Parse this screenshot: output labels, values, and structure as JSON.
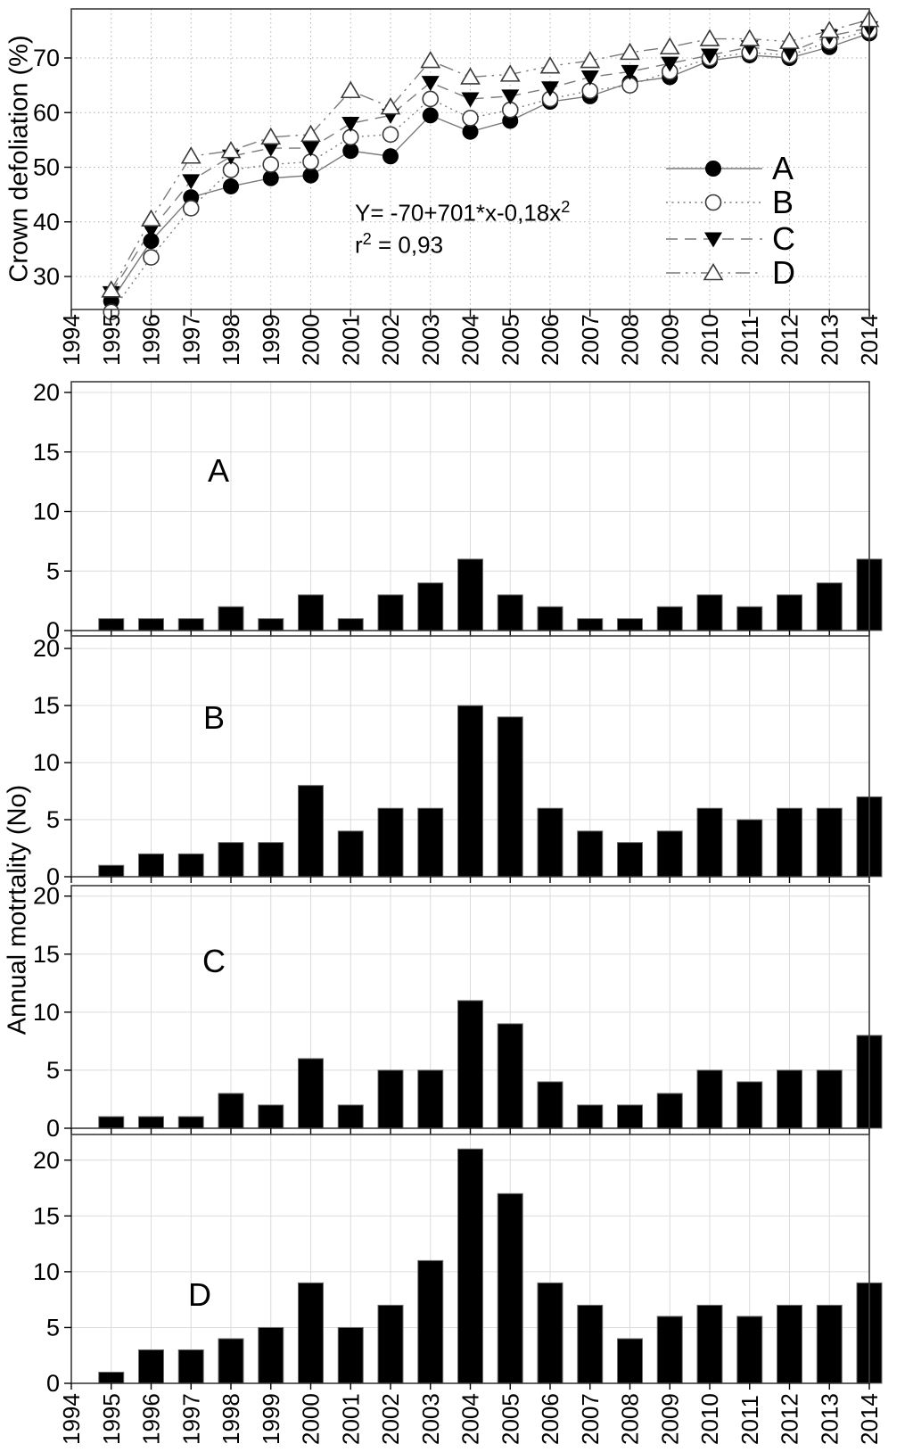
{
  "labels": {
    "ylabel_top": "Crown defoliation (%)",
    "ylabel_bottom": "Annual motrtality (No)"
  },
  "equation": {
    "line1_base": "Y= -70+701*x-0,18x",
    "line1_sup": "2",
    "line2_base": "r",
    "line2_sup": "2",
    "line2_rest": " = 0,93"
  },
  "colors": {
    "line_gray": "#7a7a7a",
    "marker_black": "#000000",
    "marker_edge": "#3a3a3a",
    "grid_dotted": "#b0b0b0",
    "grid_solid": "#dcdcdc",
    "frame": "#3c3c3c",
    "bar_fill": "#000000",
    "bar_edge": "#6e6e6e"
  },
  "chart_data": [
    {
      "id": "crown-defoliation",
      "type": "line",
      "ylabel": "Crown defoliation (%)",
      "xlim": [
        1994,
        2014
      ],
      "ylim": [
        24,
        79
      ],
      "yticks": [
        30,
        40,
        50,
        60,
        70
      ],
      "xticks": [
        1994,
        1995,
        1996,
        1997,
        1998,
        1999,
        2000,
        2001,
        2002,
        2003,
        2004,
        2005,
        2006,
        2007,
        2008,
        2009,
        2010,
        2011,
        2012,
        2013,
        2014
      ],
      "x": [
        1995,
        1996,
        1997,
        1998,
        1999,
        2000,
        2001,
        2002,
        2003,
        2004,
        2005,
        2006,
        2007,
        2008,
        2009,
        2010,
        2011,
        2012,
        2013,
        2014
      ],
      "grid": true,
      "legend_position": "right-middle",
      "annotation": "Y= -70+701*x-0,18x^2 ; r^2 = 0,93",
      "legend": [
        {
          "name": "A",
          "marker": "circle-filled",
          "line": "solid"
        },
        {
          "name": "B",
          "marker": "circle-open",
          "line": "dotted"
        },
        {
          "name": "C",
          "marker": "triangle-down-filled",
          "line": "dashed"
        },
        {
          "name": "D",
          "marker": "triangle-up-open",
          "line": "dashdotdot"
        }
      ],
      "series": [
        {
          "name": "A",
          "values": [
            25.5,
            36.5,
            44.5,
            46.5,
            48,
            48.5,
            53,
            52,
            59.5,
            56.5,
            58.5,
            62,
            63,
            65.5,
            66.5,
            69.5,
            70.5,
            70,
            72,
            74.5
          ]
        },
        {
          "name": "B",
          "values": [
            23.5,
            33.5,
            42.5,
            49.5,
            50.5,
            51,
            55.5,
            56,
            62.5,
            59,
            60.5,
            62.5,
            64,
            65,
            67.5,
            70,
            71,
            70.5,
            73,
            75
          ]
        },
        {
          "name": "C",
          "values": [
            27,
            38.5,
            47.5,
            52,
            53.5,
            53.5,
            58,
            59.5,
            65.5,
            62.5,
            63,
            64.5,
            66.5,
            67.5,
            69,
            70.5,
            72,
            71,
            74,
            75.5
          ]
        },
        {
          "name": "D",
          "values": [
            27.5,
            40.5,
            52,
            53,
            55.5,
            56,
            64,
            61,
            69.5,
            66.5,
            67,
            68.5,
            69.5,
            71,
            72,
            73.5,
            73.5,
            73,
            75,
            77
          ]
        }
      ]
    },
    {
      "id": "mortality-A",
      "type": "bar",
      "label": "A",
      "ylim": [
        0,
        20.9
      ],
      "yticks": [
        0,
        5,
        10,
        15,
        20
      ],
      "categories": [
        1995,
        1996,
        1997,
        1998,
        1999,
        2000,
        2001,
        2002,
        2003,
        2004,
        2005,
        2006,
        2007,
        2008,
        2009,
        2010,
        2011,
        2012,
        2013,
        2014
      ],
      "values": [
        1,
        1,
        1,
        2,
        1,
        3,
        1,
        3,
        4,
        6,
        3,
        2,
        1,
        1,
        2,
        3,
        2,
        3,
        4,
        6
      ]
    },
    {
      "id": "mortality-B",
      "type": "bar",
      "label": "B",
      "ylim": [
        0,
        21.1
      ],
      "yticks": [
        0,
        5,
        10,
        15,
        20
      ],
      "categories": [
        1995,
        1996,
        1997,
        1998,
        1999,
        2000,
        2001,
        2002,
        2003,
        2004,
        2005,
        2006,
        2007,
        2008,
        2009,
        2010,
        2011,
        2012,
        2013,
        2014
      ],
      "values": [
        1,
        2,
        2,
        3,
        3,
        8,
        4,
        6,
        6,
        15,
        14,
        6,
        4,
        3,
        4,
        6,
        5,
        6,
        6,
        7
      ]
    },
    {
      "id": "mortality-C",
      "type": "bar",
      "label": "C",
      "ylim": [
        0,
        20.9
      ],
      "yticks": [
        0,
        5,
        10,
        15,
        20
      ],
      "categories": [
        1995,
        1996,
        1997,
        1998,
        1999,
        2000,
        2001,
        2002,
        2003,
        2004,
        2005,
        2006,
        2007,
        2008,
        2009,
        2010,
        2011,
        2012,
        2013,
        2014
      ],
      "values": [
        1,
        1,
        1,
        3,
        2,
        6,
        2,
        5,
        5,
        11,
        9,
        4,
        2,
        2,
        3,
        5,
        4,
        5,
        5,
        8
      ]
    },
    {
      "id": "mortality-D",
      "type": "bar",
      "label": "D",
      "ylim": [
        0,
        22.3
      ],
      "yticks": [
        0,
        5,
        10,
        15,
        20
      ],
      "categories": [
        1995,
        1996,
        1997,
        1998,
        1999,
        2000,
        2001,
        2002,
        2003,
        2004,
        2005,
        2006,
        2007,
        2008,
        2009,
        2010,
        2011,
        2012,
        2013,
        2014
      ],
      "values": [
        1,
        3,
        3,
        4,
        5,
        9,
        5,
        7,
        11,
        21,
        17,
        9,
        7,
        4,
        6,
        7,
        6,
        7,
        7,
        9
      ]
    }
  ],
  "bottom_axis_years": [
    1994,
    1995,
    1996,
    1997,
    1998,
    1999,
    2000,
    2001,
    2002,
    2003,
    2004,
    2005,
    2006,
    2007,
    2008,
    2009,
    2010,
    2011,
    2012,
    2013,
    2014
  ]
}
